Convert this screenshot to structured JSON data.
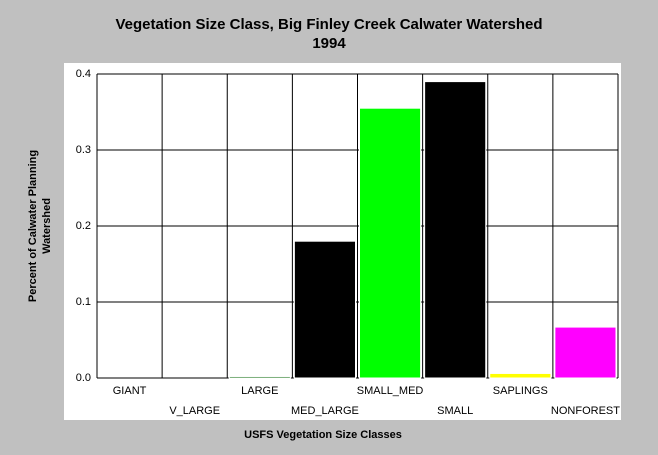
{
  "chart_data": {
    "type": "bar",
    "title": "Vegetation Size Class, Big Finley Creek Calwater Watershed",
    "subtitle": "1994",
    "xlabel": "USFS Vegetation Size Classes",
    "ylabel": [
      "Percent of Calwater Planning",
      "Watershed"
    ],
    "categories": [
      "GIANT",
      "V_LARGE",
      "LARGE",
      "MED_LARGE",
      "SMALL_MED",
      "SMALL",
      "SAPLINGS",
      "NONFOREST"
    ],
    "values": [
      0,
      0,
      0.002,
      0.18,
      0.355,
      0.39,
      0.006,
      0.067
    ],
    "colors": [
      "#006400",
      "#006400",
      "#006400",
      "#2e8b2e",
      "#00ff00",
      "#3fb8c8",
      "#ffff00",
      "#ff00ff"
    ],
    "ylim": [
      0,
      0.4
    ],
    "yticks": [
      {
        "value": 0,
        "label": "0.0"
      },
      0.1,
      0.2,
      0.3,
      0.4
    ],
    "grid": true
  }
}
